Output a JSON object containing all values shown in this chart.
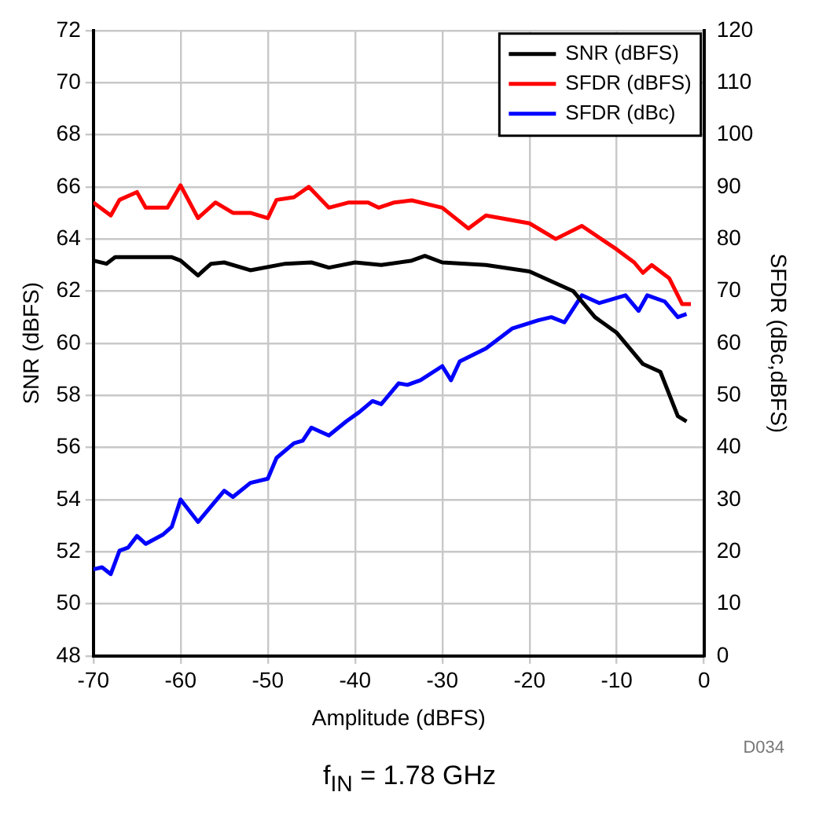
{
  "chart_data": {
    "type": "line",
    "xlabel": "Amplitude (dBFS)",
    "ylabel": "SNR (dBFS)",
    "y2label": "SFDR (dBc,dBFS)",
    "xlim": [
      -70,
      0
    ],
    "xticks": [
      -70,
      -60,
      -50,
      -40,
      -30,
      -20,
      -10,
      0
    ],
    "ylim": [
      48,
      72
    ],
    "yticks": [
      48,
      50,
      52,
      54,
      56,
      58,
      60,
      62,
      64,
      66,
      68,
      70,
      72
    ],
    "y2lim": [
      0,
      120
    ],
    "y2ticks": [
      0,
      10,
      20,
      30,
      40,
      50,
      60,
      70,
      80,
      90,
      100,
      110,
      120
    ],
    "grid": true,
    "legend": "top right",
    "marker": "none",
    "line_style": "solid",
    "annotations": [
      "D034",
      "f$_{IN}$ = 1.78 GHz"
    ],
    "series": [
      {
        "name": "SNR (dBFS)",
        "color": "#000000",
        "x": [
          -70,
          -68.5,
          -67.5,
          -61,
          -60,
          -58,
          -56.5,
          -55,
          -52,
          -48,
          -45,
          -43,
          -40,
          -37,
          -33.5,
          -32,
          -30,
          -25,
          -20,
          -15,
          -12.5,
          -10,
          -7,
          -5,
          -3,
          -2
        ],
        "values": [
          63.17,
          63.05,
          63.3,
          63.3,
          63.17,
          62.6,
          63.05,
          63.1,
          62.8,
          63.05,
          63.1,
          62.9,
          63.1,
          63.0,
          63.17,
          63.35,
          63.1,
          63.0,
          62.75,
          62.0,
          61.0,
          60.4,
          59.2,
          58.9,
          57.2,
          57.0
        ]
      },
      {
        "name": "SFDR (dBFS)",
        "color": "#ff0000",
        "axis": "y2",
        "x": [
          -70,
          -68,
          -67,
          -65,
          -64,
          -61.5,
          -60,
          -58,
          -56,
          -54,
          -52,
          -50,
          -49,
          -47,
          -45.3,
          -43,
          -40.7,
          -38.5,
          -37.3,
          -35.5,
          -33.5,
          -30,
          -27,
          -25,
          -20,
          -17,
          -14,
          -10,
          -8,
          -7,
          -6,
          -4,
          -2.5,
          -1.5
        ],
        "values": [
          87,
          84.5,
          87.5,
          89,
          86,
          86,
          90.3,
          84,
          87,
          85,
          85,
          84,
          87.5,
          88,
          90,
          86,
          87,
          87,
          86,
          87,
          87.4,
          86,
          82,
          84.5,
          83,
          80,
          82.5,
          78,
          75.5,
          73.5,
          75,
          72.5,
          67.5,
          67.5
        ]
      },
      {
        "name": "SFDR (dBc)",
        "color": "#0000ff",
        "axis": "y2",
        "x": [
          -70,
          -69,
          -68,
          -67,
          -66,
          -65,
          -64,
          -62,
          -61,
          -60,
          -58,
          -56.5,
          -55,
          -54,
          -52,
          -50,
          -49,
          -47,
          -46,
          -45,
          -43,
          -41,
          -39.5,
          -38,
          -37,
          -35,
          -34,
          -32.5,
          -30,
          -29,
          -28,
          -25,
          -22,
          -19,
          -17.5,
          -16,
          -14,
          -12,
          -9,
          -7.5,
          -6.5,
          -4.5,
          -3,
          -2
        ],
        "values": [
          16.6,
          17,
          15.7,
          20.2,
          20.8,
          23,
          21.5,
          23.3,
          24.8,
          30,
          25.7,
          28.7,
          31.7,
          30.5,
          33.2,
          34,
          38,
          40.8,
          41.3,
          43.8,
          42.3,
          45,
          46.8,
          48.9,
          48.3,
          52.3,
          52,
          52.9,
          55.6,
          52.9,
          56.5,
          59,
          62.8,
          64.4,
          65,
          64,
          69.2,
          67.7,
          69.2,
          66.2,
          69.2,
          68,
          65,
          65.6
        ]
      }
    ]
  }
}
